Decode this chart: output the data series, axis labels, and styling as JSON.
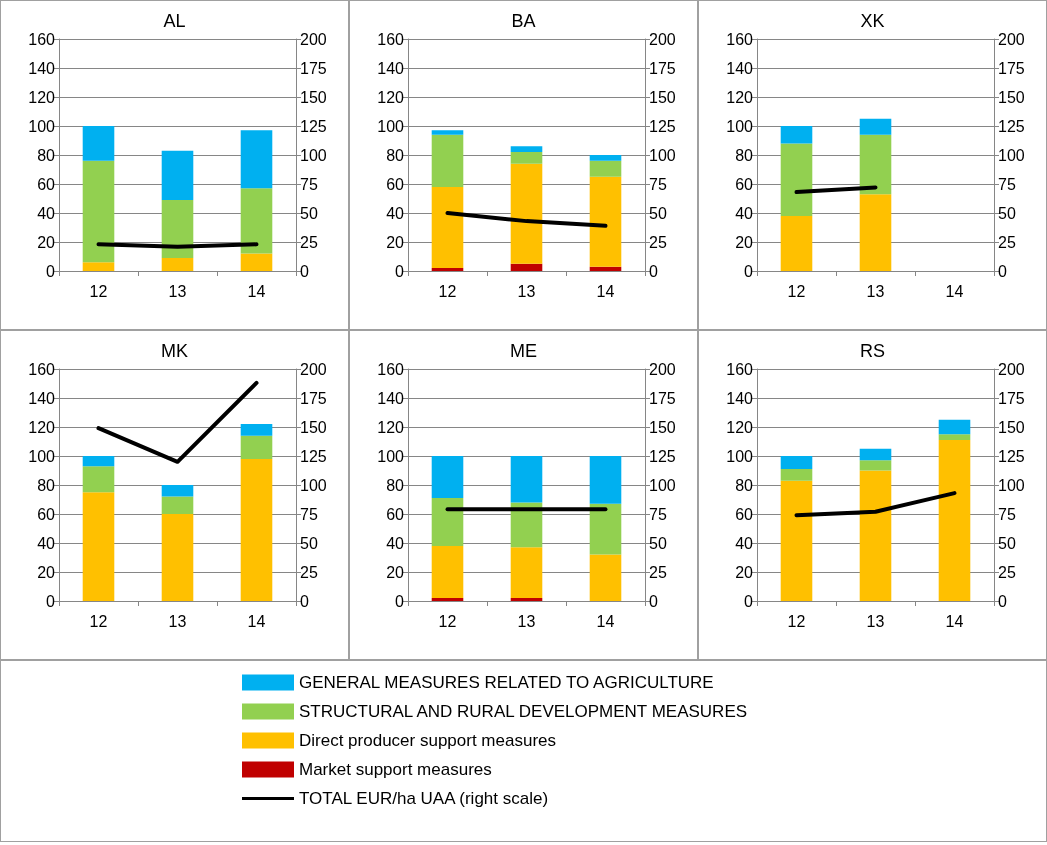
{
  "chart_data": [
    {
      "type": "bar",
      "title": "AL",
      "categories": [
        "12",
        "13",
        "14"
      ],
      "stacked": true,
      "ylim": [
        0,
        160
      ],
      "yticks": [
        0,
        20,
        40,
        60,
        80,
        100,
        120,
        140,
        160
      ],
      "y2lim": [
        0,
        200
      ],
      "y2ticks": [
        0,
        25,
        50,
        75,
        100,
        125,
        150,
        175,
        200
      ],
      "grid": "y",
      "legend": "bottom",
      "series": [
        {
          "name": "Market support measures",
          "color": "#c00000",
          "values": [
            0,
            0,
            0
          ]
        },
        {
          "name": "Direct producer support measures",
          "color": "#ffc000",
          "values": [
            6,
            9,
            12
          ]
        },
        {
          "name": "STRUCTURAL AND RURAL DEVELOPMENT MEASURES",
          "color": "#92d050",
          "values": [
            70,
            40,
            45
          ]
        },
        {
          "name": "GENERAL MEASURES RELATED TO AGRICULTURE",
          "color": "#00b0f0",
          "values": [
            24,
            34,
            40
          ]
        },
        {
          "name": "TOTAL EUR/ha UAA (right scale)",
          "type": "line",
          "axis": "y2",
          "color": "#000000",
          "values": [
            23,
            21,
            23
          ]
        }
      ]
    },
    {
      "type": "bar",
      "title": "BA",
      "categories": [
        "12",
        "13",
        "14"
      ],
      "stacked": true,
      "ylim": [
        0,
        160
      ],
      "yticks": [
        0,
        20,
        40,
        60,
        80,
        100,
        120,
        140,
        160
      ],
      "y2lim": [
        0,
        200
      ],
      "y2ticks": [
        0,
        25,
        50,
        75,
        100,
        125,
        150,
        175,
        200
      ],
      "grid": "y",
      "series": [
        {
          "color": "#c00000",
          "values": [
            2,
            5,
            3
          ]
        },
        {
          "color": "#ffc000",
          "values": [
            56,
            69,
            62
          ]
        },
        {
          "color": "#92d050",
          "values": [
            36,
            8,
            11
          ]
        },
        {
          "color": "#00b0f0",
          "values": [
            3,
            4,
            4
          ]
        },
        {
          "type": "line",
          "axis": "y2",
          "color": "#000000",
          "values": [
            50,
            43,
            39
          ]
        }
      ]
    },
    {
      "type": "bar",
      "title": "XK",
      "categories": [
        "12",
        "13",
        "14"
      ],
      "stacked": true,
      "ylim": [
        0,
        160
      ],
      "yticks": [
        0,
        20,
        40,
        60,
        80,
        100,
        120,
        140,
        160
      ],
      "y2lim": [
        0,
        200
      ],
      "y2ticks": [
        0,
        25,
        50,
        75,
        100,
        125,
        150,
        175,
        200
      ],
      "grid": "y",
      "series": [
        {
          "color": "#c00000",
          "values": [
            0,
            0,
            null
          ]
        },
        {
          "color": "#ffc000",
          "values": [
            38,
            53,
            null
          ]
        },
        {
          "color": "#92d050",
          "values": [
            50,
            41,
            null
          ]
        },
        {
          "color": "#00b0f0",
          "values": [
            12,
            11,
            null
          ]
        },
        {
          "type": "line",
          "axis": "y2",
          "color": "#000000",
          "values": [
            68,
            72,
            null
          ]
        }
      ]
    },
    {
      "type": "bar",
      "title": "MK",
      "categories": [
        "12",
        "13",
        "14"
      ],
      "stacked": true,
      "ylim": [
        0,
        160
      ],
      "yticks": [
        0,
        20,
        40,
        60,
        80,
        100,
        120,
        140,
        160
      ],
      "y2lim": [
        0,
        200
      ],
      "y2ticks": [
        0,
        25,
        50,
        75,
        100,
        125,
        150,
        175,
        200
      ],
      "grid": "y",
      "series": [
        {
          "color": "#c00000",
          "values": [
            0,
            0,
            0
          ]
        },
        {
          "color": "#ffc000",
          "values": [
            75,
            60,
            98
          ]
        },
        {
          "color": "#92d050",
          "values": [
            18,
            12,
            16
          ]
        },
        {
          "color": "#00b0f0",
          "values": [
            7,
            8,
            8
          ]
        },
        {
          "type": "line",
          "axis": "y2",
          "color": "#000000",
          "values": [
            149,
            120,
            188
          ]
        }
      ]
    },
    {
      "type": "bar",
      "title": "ME",
      "categories": [
        "12",
        "13",
        "14"
      ],
      "stacked": true,
      "ylim": [
        0,
        160
      ],
      "yticks": [
        0,
        20,
        40,
        60,
        80,
        100,
        120,
        140,
        160
      ],
      "y2lim": [
        0,
        200
      ],
      "y2ticks": [
        0,
        25,
        50,
        75,
        100,
        125,
        150,
        175,
        200
      ],
      "grid": "y",
      "series": [
        {
          "color": "#c00000",
          "values": [
            2,
            2,
            0
          ]
        },
        {
          "color": "#ffc000",
          "values": [
            36,
            35,
            32
          ]
        },
        {
          "color": "#92d050",
          "values": [
            33,
            31,
            35
          ]
        },
        {
          "color": "#00b0f0",
          "values": [
            29,
            32,
            33
          ]
        },
        {
          "type": "line",
          "axis": "y2",
          "color": "#000000",
          "values": [
            79,
            79,
            79
          ]
        }
      ]
    },
    {
      "type": "bar",
      "title": "RS",
      "categories": [
        "12",
        "13",
        "14"
      ],
      "stacked": true,
      "ylim": [
        0,
        160
      ],
      "yticks": [
        0,
        20,
        40,
        60,
        80,
        100,
        120,
        140,
        160
      ],
      "y2lim": [
        0,
        200
      ],
      "y2ticks": [
        0,
        25,
        50,
        75,
        100,
        125,
        150,
        175,
        200
      ],
      "grid": "y",
      "series": [
        {
          "color": "#c00000",
          "values": [
            0,
            0,
            0
          ]
        },
        {
          "color": "#ffc000",
          "values": [
            83,
            90,
            111
          ]
        },
        {
          "color": "#92d050",
          "values": [
            8,
            7,
            4
          ]
        },
        {
          "color": "#00b0f0",
          "values": [
            9,
            8,
            10
          ]
        },
        {
          "type": "line",
          "axis": "y2",
          "color": "#000000",
          "values": [
            74,
            77,
            93
          ]
        }
      ]
    }
  ]
}
